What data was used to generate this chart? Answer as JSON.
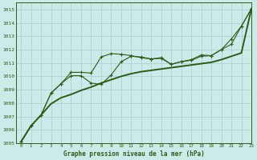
{
  "title": "Graphe pression niveau de la mer (hPa)",
  "bg_color": "#cceae8",
  "grid_color": "#a8d4d2",
  "line_color": "#2d5a1b",
  "xlim": [
    -0.5,
    23
  ],
  "ylim": [
    1005,
    1015.5
  ],
  "xticks": [
    0,
    1,
    2,
    3,
    4,
    5,
    6,
    7,
    8,
    9,
    10,
    11,
    12,
    13,
    14,
    15,
    16,
    17,
    18,
    19,
    20,
    21,
    22,
    23
  ],
  "yticks": [
    1005,
    1006,
    1007,
    1008,
    1009,
    1010,
    1011,
    1012,
    1013,
    1014,
    1015
  ],
  "series1_x": [
    0,
    1,
    2,
    3,
    4,
    5,
    6,
    7,
    8,
    9,
    10,
    11,
    12,
    13,
    14,
    15,
    16,
    17,
    18,
    19,
    20,
    21,
    22,
    23
  ],
  "series1_y": [
    1005.1,
    1006.3,
    1007.1,
    1008.75,
    1009.45,
    1010.3,
    1010.3,
    1010.25,
    1011.45,
    1011.7,
    1011.65,
    1011.55,
    1011.4,
    1011.3,
    1011.4,
    1010.9,
    1011.1,
    1011.25,
    1011.6,
    1011.55,
    1012.0,
    1012.8,
    1013.75,
    1015.05
  ],
  "series2_x": [
    0,
    1,
    2,
    3,
    4,
    5,
    6,
    7,
    8,
    9,
    10,
    11,
    12,
    13,
    14,
    15,
    16,
    17,
    18,
    19,
    20,
    21,
    22,
    23
  ],
  "series2_y": [
    1005.1,
    1006.3,
    1007.1,
    1008.75,
    1009.45,
    1010.05,
    1010.05,
    1009.5,
    1009.4,
    1010.1,
    1011.1,
    1011.5,
    1011.45,
    1011.3,
    1011.35,
    1010.9,
    1011.1,
    1011.2,
    1011.5,
    1011.55,
    1012.0,
    1012.4,
    1013.75,
    1015.05
  ],
  "series3_x": [
    0,
    1,
    2,
    3,
    4,
    5,
    6,
    7,
    8,
    9,
    10,
    11,
    12,
    13,
    14,
    15,
    16,
    17,
    18,
    19,
    20,
    21,
    22,
    23
  ],
  "series3_y": [
    1005.1,
    1006.3,
    1007.1,
    1007.95,
    1008.4,
    1008.65,
    1008.95,
    1009.2,
    1009.5,
    1009.75,
    1010.0,
    1010.2,
    1010.35,
    1010.45,
    1010.55,
    1010.65,
    1010.75,
    1010.85,
    1010.95,
    1011.05,
    1011.25,
    1011.5,
    1011.75,
    1015.05
  ]
}
